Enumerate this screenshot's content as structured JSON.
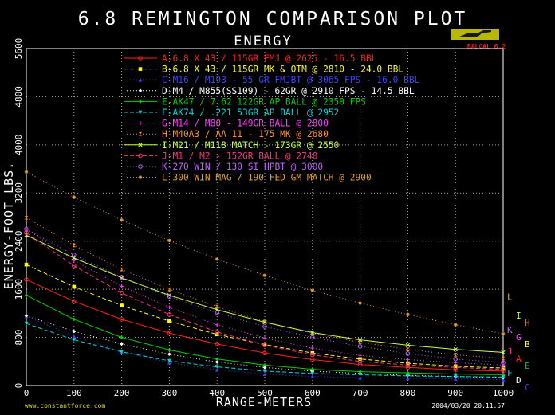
{
  "chart_data": {
    "type": "line",
    "title": "6.8 REMINGTON COMPARISON PLOT",
    "subtitle": "ENERGY",
    "xlabel": "RANGE-METERS",
    "ylabel": "ENERGY-FOOT LBS.",
    "xlim": [
      0,
      1000
    ],
    "ylim": [
      0,
      5600
    ],
    "x_ticks": [
      0,
      100,
      200,
      300,
      400,
      500,
      600,
      700,
      800,
      900,
      1000
    ],
    "y_ticks": [
      0,
      800,
      1600,
      2400,
      3200,
      4000,
      4800,
      5600
    ],
    "grid": true,
    "legend_position": "top-right",
    "x": [
      0,
      100,
      200,
      300,
      400,
      500,
      600,
      700,
      800,
      900,
      1000
    ],
    "series": [
      {
        "name": "A-6.8 X 43 / 115GR FMJ @ 2625 - 16.5 BBL",
        "end_label": "A",
        "color": "#ff2020",
        "style": "solid",
        "marker": "circle",
        "values": [
          1760,
          1400,
          1100,
          870,
          690,
          540,
          430,
          350,
          300,
          260,
          240
        ]
      },
      {
        "name": "B-6.8 X 43 / 115GR MK & OTM @ 2810 - 24.0 BBL",
        "end_label": "B",
        "color": "#ffff00",
        "style": "dash",
        "marker": "square",
        "values": [
          2010,
          1640,
          1330,
          1070,
          850,
          680,
          540,
          440,
          370,
          320,
          290
        ]
      },
      {
        "name": "C-M16 / M193 - 55 GR FMJBT @ 3065 FPS - 16.0 BBL",
        "end_label": "C",
        "color": "#4040ff",
        "style": "dot",
        "marker": "triangle",
        "values": [
          1150,
          820,
          560,
          380,
          260,
          190,
          150,
          130,
          120,
          110,
          100
        ]
      },
      {
        "name": "D-M4 / M855(SS109) - 62GR @ 2910 FPS - 14.5 BBL",
        "end_label": "D",
        "color": "#ffffff",
        "style": "dot",
        "marker": "diamond",
        "values": [
          1160,
          900,
          690,
          520,
          390,
          300,
          240,
          200,
          170,
          150,
          130
        ]
      },
      {
        "name": "E-AK47 / 7.62 122GR AP BALL @ 2350 FPS",
        "end_label": "E",
        "color": "#00d000",
        "style": "solid",
        "marker": "diamond",
        "values": [
          1500,
          1100,
          800,
          590,
          440,
          340,
          270,
          230,
          210,
          190,
          180
        ]
      },
      {
        "name": "F-AK74 / .221 53GR AP BALL @ 2952",
        "end_label": "F",
        "color": "#00d8d8",
        "style": "dash",
        "marker": "triangle-down",
        "values": [
          1030,
          760,
          560,
          410,
          310,
          240,
          200,
          180,
          160,
          150,
          140
        ]
      },
      {
        "name": "G-M14 / M80 - 149GR BALL @ 2800",
        "end_label": "G",
        "color": "#ff40ff",
        "style": "dot",
        "marker": "plus",
        "values": [
          2600,
          2080,
          1650,
          1300,
          1010,
          790,
          620,
          500,
          430,
          380,
          340
        ]
      },
      {
        "name": "H-M40A3 / AA 11 - 175 MK @ 2680",
        "end_label": "H",
        "color": "#ff8c20",
        "style": "dot",
        "marker": "hourglass",
        "values": [
          2790,
          2330,
          1930,
          1600,
          1310,
          1060,
          870,
          720,
          600,
          510,
          450
        ]
      },
      {
        "name": "I-M21 / M118 MATCH - 173GR @ 2550",
        "end_label": "I",
        "color": "#c8ff40",
        "style": "solid",
        "marker": "x",
        "values": [
          2500,
          2120,
          1790,
          1500,
          1260,
          1050,
          880,
          760,
          670,
          600,
          550
        ]
      },
      {
        "name": "J-M1 / M2 - 152GR BALL @ 2740",
        "end_label": "J",
        "color": "#ff3080",
        "style": "dash",
        "marker": "circle",
        "values": [
          2540,
          1990,
          1540,
          1180,
          890,
          670,
          510,
          400,
          340,
          300,
          270
        ]
      },
      {
        "name": "K-270 WIN / 130 SI HPBT @ 3000",
        "end_label": "K",
        "color": "#c060ff",
        "style": "dot",
        "marker": "circle",
        "values": [
          2600,
          2170,
          1800,
          1480,
          1210,
          980,
          800,
          650,
          530,
          440,
          380
        ]
      },
      {
        "name": "L-300 WIN MAG / 190 FED GM MATCH @ 2900",
        "end_label": "L",
        "color": "#e0a030",
        "style": "dot",
        "marker": "star",
        "values": [
          3550,
          3130,
          2750,
          2410,
          2100,
          1830,
          1580,
          1370,
          1180,
          1010,
          860
        ]
      }
    ]
  },
  "footer": {
    "website": "www.constantforce.com",
    "timestamp": "2004/03/20  20:11:57"
  },
  "logo": {
    "text": "BALCAL 6.2",
    "color": "#e02020"
  }
}
